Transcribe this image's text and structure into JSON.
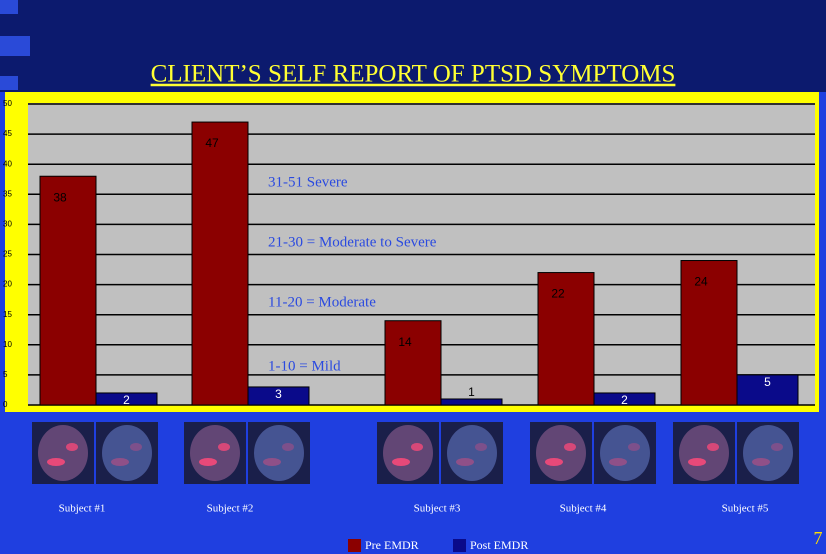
{
  "chart_data": {
    "type": "bar",
    "title": "CLIENT’S SELF REPORT OF PTSD SYMPTOMS",
    "categories": [
      "Subject #1",
      "Subject #2",
      "Subject #3",
      "Subject #4",
      "Subject #5"
    ],
    "series": [
      {
        "name": "Pre EMDR",
        "color": "#8b0000",
        "values": [
          38,
          47,
          14,
          22,
          24
        ]
      },
      {
        "name": "Post EMDR",
        "color": "#0a0a8a",
        "values": [
          2,
          3,
          1,
          2,
          5
        ]
      }
    ],
    "annotations": [
      "31-51 Severe",
      "21-30 = Moderate to Severe",
      "11-20 = Moderate",
      "1-10 = Mild"
    ],
    "ylim": [
      0,
      50
    ],
    "yticks": [
      0,
      5,
      10,
      15,
      20,
      25,
      30,
      35,
      40,
      45,
      50
    ],
    "grid": true,
    "legend": "bottom"
  },
  "slide_number": "7"
}
